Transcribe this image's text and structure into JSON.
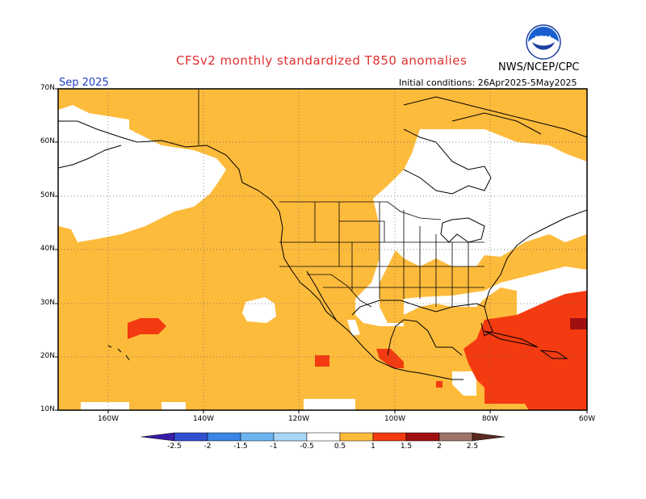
{
  "header": {
    "title": "CFSv2 monthly standardized T850 anomalies",
    "agency": "NWS/NCEP/CPC",
    "month": "Sep 2025",
    "initial_conditions": "Initial conditions: 26Apr2025-5May2025",
    "logo_text": "NOAA"
  },
  "axes": {
    "lat_labels": [
      "70N",
      "60N",
      "50N",
      "40N",
      "30N",
      "20N",
      "10N"
    ],
    "lon_labels": [
      "160W",
      "140W",
      "120W",
      "100W",
      "80W",
      "60W"
    ]
  },
  "colorbar": {
    "labels": [
      "-2.5",
      "-2",
      "-1.5",
      "-1",
      "-0.5",
      "0.5",
      "1",
      "1.5",
      "2",
      "2.5"
    ],
    "colors": [
      "#3a1aa8",
      "#2f4fd0",
      "#3a86e6",
      "#6ab4f0",
      "#a8d6f8",
      "#ffffff",
      "#fdbb3c",
      "#f43a10",
      "#a01010",
      "#9c7468",
      "#5a2a20"
    ]
  },
  "palette": {
    "ocean_land_anomaly_0_5_1": "#fdbb3c",
    "anomaly_1_1_5": "#f43a10",
    "anomaly_1_5_2": "#a01010",
    "neutral": "#ffffff"
  }
}
